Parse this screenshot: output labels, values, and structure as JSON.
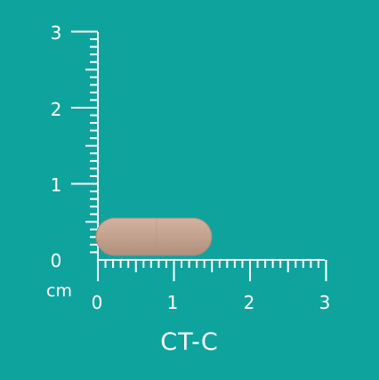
{
  "caption": "CT-C",
  "unit": "cm",
  "y_ticks": [
    "3",
    "2",
    "1",
    "0"
  ],
  "x_ticks": [
    "0",
    "1",
    "2",
    "3"
  ],
  "colors": {
    "background": "#0fa39e",
    "ruler": "#ffffff",
    "capsule_fill": "#c0a090",
    "capsule_edge": "#a98877"
  },
  "object": {
    "type": "capsule",
    "length_cm": 1.5,
    "diameter_cm": 0.5
  }
}
